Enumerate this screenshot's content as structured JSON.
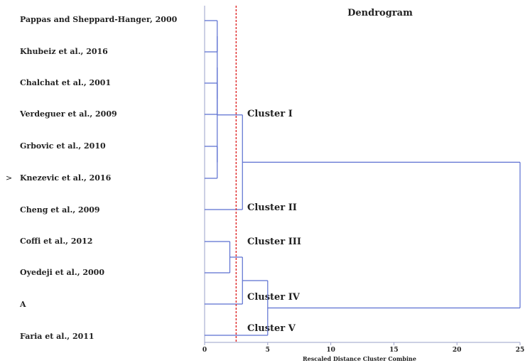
{
  "title": "Dendrogram",
  "axis": {
    "label": "Rescaled Distance Cluster Combine",
    "range": [
      0,
      25
    ],
    "ticks": [
      "0",
      "5",
      "10",
      "15",
      "20",
      "25"
    ]
  },
  "leaves": [
    "Pappas and  Sheppard-Hanger, 2000",
    "Khubeiz et al., 2016",
    "Chalchat et al., 2001",
    "Verdeguer et al., 2009",
    "Grbovic et al., 2010",
    "Knezevic et al., 2016",
    "Cheng et al., 2009",
    "Coffi et al., 2012",
    "Oyedeji et al., 2000",
    "A",
    "Faria et al., 2011"
  ],
  "highlight_marker": {
    "leaf_index": 5,
    "symbol": ">"
  },
  "clusters": [
    "Cluster I",
    "Cluster II",
    "Cluster III",
    "Cluster IV",
    "Cluster V"
  ],
  "cut_line": {
    "distance": 2.5,
    "color": "#e03030",
    "style": "dashed"
  },
  "colors": {
    "branch": "#5b6fd1",
    "axis": "#9aa0c8",
    "text": "#222222"
  },
  "merges": [
    {
      "a": "L0",
      "b": "L1",
      "d": 1.0
    },
    {
      "a": "L2",
      "b": "L3",
      "d": 1.0
    },
    {
      "a": "L4",
      "b": "L5",
      "d": 1.0
    },
    {
      "a": "m0",
      "b": "m1",
      "d": 1.0
    },
    {
      "a": "m3",
      "b": "m2",
      "d": 1.0
    },
    {
      "a": "m4",
      "b": "L6",
      "d": 3.0
    },
    {
      "a": "L7",
      "b": "L8",
      "d": 2.0
    },
    {
      "a": "m6",
      "b": "L9",
      "d": 3.0
    },
    {
      "a": "m7",
      "b": "L10",
      "d": 5.0
    },
    {
      "a": "m5",
      "b": "m8",
      "d": 25.0
    }
  ]
}
